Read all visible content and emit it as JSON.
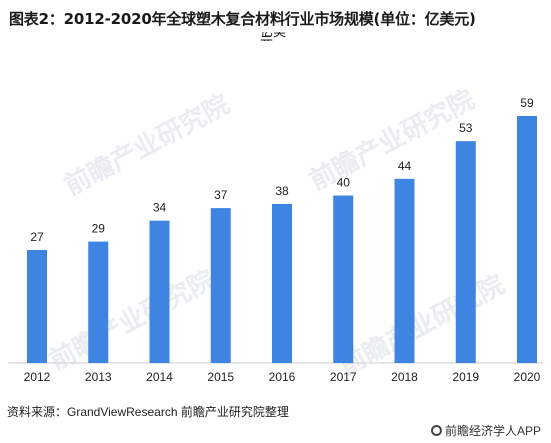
{
  "title": "图表2：2012-2020年全球塑木复合材料行业市场规模(单位：亿美元)",
  "title_clipped_fragment": "亿美元",
  "watermark": "前瞻产业研究院",
  "source": "资料来源：GrandViewResearch 前瞻产业研究院整理",
  "brand": "前瞻经济学人APP",
  "colors": {
    "bar": "#3D85E0",
    "label": "#222222",
    "axis": "#cccccc"
  },
  "chart_data": {
    "type": "bar",
    "title": "图表2：2012-2020年全球塑木复合材料行业市场规模(单位：亿美元)",
    "categories": [
      "2012",
      "2013",
      "2014",
      "2015",
      "2016",
      "2017",
      "2018",
      "2019",
      "2020"
    ],
    "values": [
      27,
      29,
      34,
      37,
      38,
      40,
      44,
      53,
      59
    ],
    "xlabel": "",
    "ylabel": "",
    "ylim": [
      0,
      59
    ],
    "grid": false,
    "legend": "none",
    "data_labels": true
  }
}
